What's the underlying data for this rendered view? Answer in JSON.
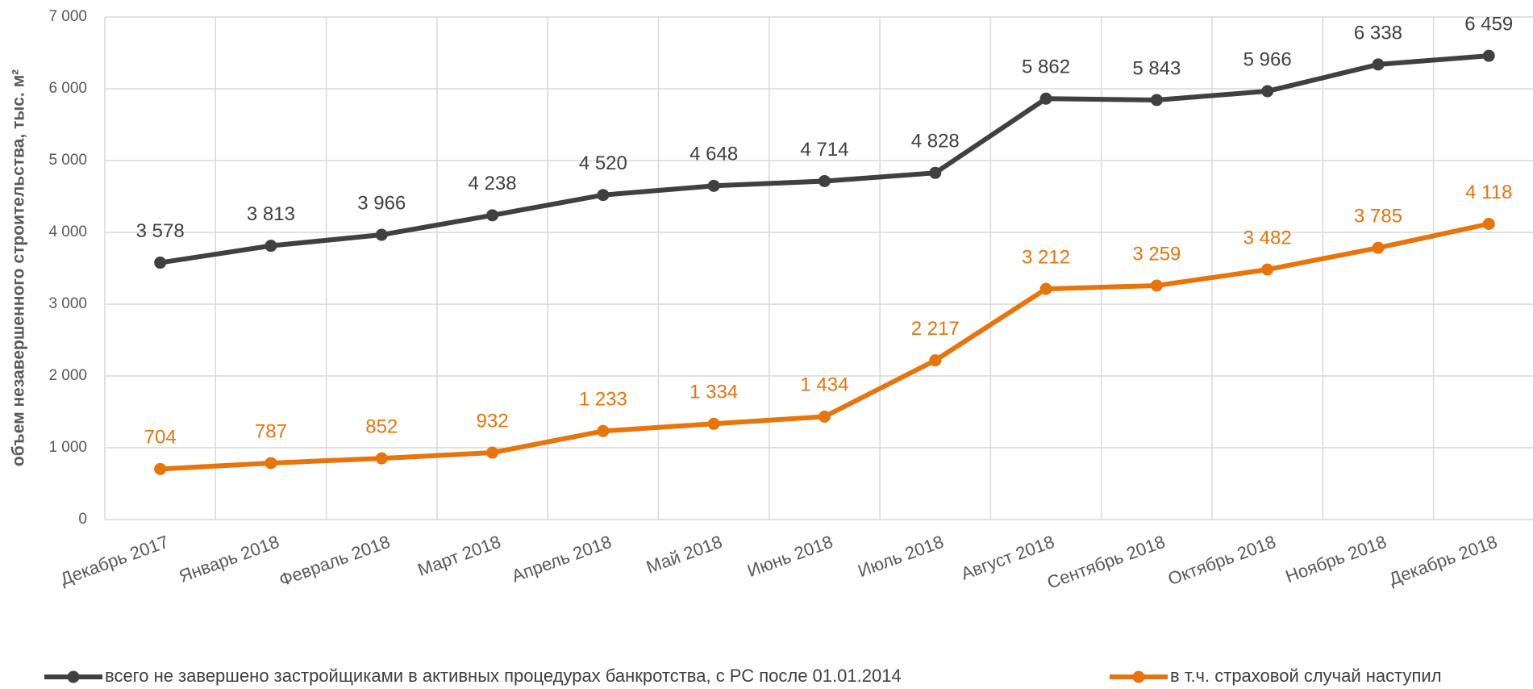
{
  "chart_data": {
    "type": "line",
    "y_label": "объем незавершенного строительства, тыс. м²",
    "categories": [
      "Декабрь 2017",
      "Январь 2018",
      "Февраль 2018",
      "Март 2018",
      "Апрель 2018",
      "Май 2018",
      "Июнь 2018",
      "Июль 2018",
      "Август 2018",
      "Сентябрь 2018",
      "Октябрь 2018",
      "Ноябрь 2018",
      "Декабрь 2018"
    ],
    "series": [
      {
        "name": "всего не завершено застройщиками в активных процедурах банкротства, с РС после 01.01.2014",
        "color": "#404040",
        "values": [
          3578,
          3813,
          3966,
          4238,
          4520,
          4648,
          4714,
          4828,
          5862,
          5843,
          5966,
          6338,
          6459
        ],
        "value_labels": [
          "3 578",
          "3 813",
          "3 966",
          "4 238",
          "4 520",
          "4 648",
          "4 714",
          "4 828",
          "5 862",
          "5 843",
          "5 966",
          "6 338",
          "6 459"
        ]
      },
      {
        "name": "в т.ч. страховой случай наступил",
        "color": "#e8740c",
        "values": [
          704,
          787,
          852,
          932,
          1233,
          1334,
          1434,
          2217,
          3212,
          3259,
          3482,
          3785,
          4118
        ],
        "value_labels": [
          "704",
          "787",
          "852",
          "932",
          "1 233",
          "1 334",
          "1 434",
          "2 217",
          "3 212",
          "3 259",
          "3 482",
          "3 785",
          "4 118"
        ]
      }
    ],
    "ylim": [
      0,
      7000
    ],
    "yticks": [
      0,
      {
        "value": 1000,
        "label": "1 000"
      },
      {
        "value": 2000,
        "label": "2 000"
      },
      {
        "value": 3000,
        "label": "3 000"
      },
      {
        "value": 4000,
        "label": "4 000"
      },
      {
        "value": 5000,
        "label": "5 000"
      },
      {
        "value": 6000,
        "label": "6 000"
      },
      {
        "value": 7000,
        "label": "7 000"
      }
    ],
    "grid": true,
    "legend": "bottom"
  }
}
